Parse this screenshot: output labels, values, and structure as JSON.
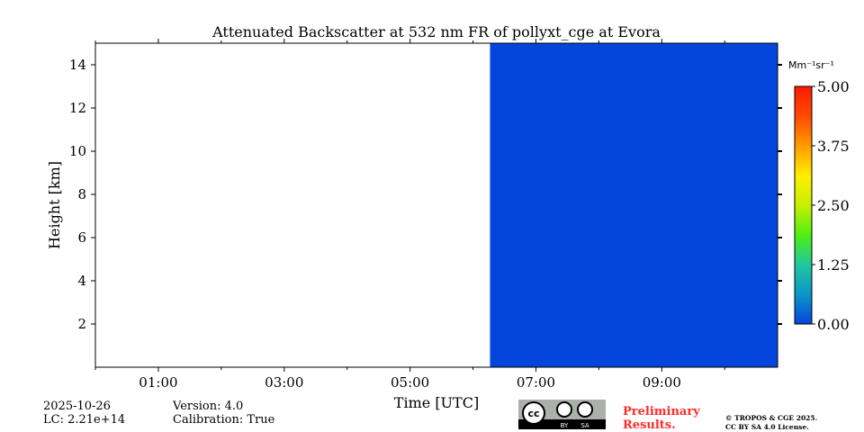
{
  "chart_data": {
    "type": "heatmap",
    "title": "Attenuated Backscatter at 532 nm FR of pollyxt_cge at Evora",
    "xlabel": "Time [UTC]",
    "ylabel": "Height [km]",
    "xlim_hours": [
      0,
      10.84
    ],
    "ylim": [
      0,
      15
    ],
    "x_ticks": [
      {
        "h": 1,
        "label": "01:00"
      },
      {
        "h": 3,
        "label": "03:00"
      },
      {
        "h": 5,
        "label": "05:00"
      },
      {
        "h": 7,
        "label": "07:00"
      },
      {
        "h": 9,
        "label": "09:00"
      }
    ],
    "x_minor_ticks": [
      0,
      2,
      4,
      6,
      8,
      10
    ],
    "y_ticks": [
      {
        "v": 2,
        "label": "2"
      },
      {
        "v": 4,
        "label": "4"
      },
      {
        "v": 6,
        "label": "6"
      },
      {
        "v": 8,
        "label": "8"
      },
      {
        "v": 10,
        "label": "10"
      },
      {
        "v": 12,
        "label": "12"
      },
      {
        "v": 14,
        "label": "14"
      }
    ],
    "data_regions": [
      {
        "start_hour": 6.27,
        "end_hour": 10.84,
        "value": 0.0,
        "color": "#0446dc"
      }
    ],
    "colorbar": {
      "unit": "Mm⁻¹sr⁻¹",
      "range": [
        0,
        5
      ],
      "ticks": [
        {
          "v": 0,
          "label": "0.00"
        },
        {
          "v": 1.25,
          "label": "1.25"
        },
        {
          "v": 2.5,
          "label": "2.50"
        },
        {
          "v": 3.75,
          "label": "3.75"
        },
        {
          "v": 5,
          "label": "5.00"
        }
      ],
      "colors": [
        "#0446dc",
        "#0a96c8",
        "#20c8a0",
        "#50f010",
        "#c8f000",
        "#ffee00",
        "#ff9a00",
        "#ff4a00",
        "#ff1a00"
      ]
    }
  },
  "footer": {
    "date": "2025-10-26",
    "lc": "LC: 2.21e+14",
    "version": "Version: 4.0",
    "calibration": "Calibration: True",
    "preliminary_line1": "Preliminary",
    "preliminary_line2": "Results.",
    "copyright_line1": "© TROPOS & CGE 2025.",
    "copyright_line2": "CC BY SA 4.0 License.",
    "cc_label": "cc",
    "by_label": "BY",
    "sa_label": "SA"
  }
}
